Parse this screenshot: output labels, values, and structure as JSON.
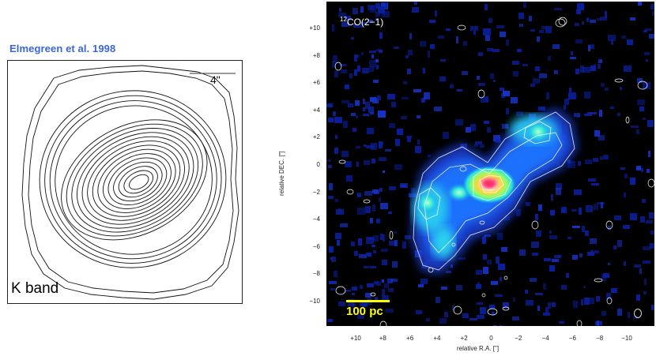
{
  "left": {
    "caption": "Elmegreen et al. 1998",
    "scale_label": "4\"",
    "band_label": "K band"
  },
  "right": {
    "line_label_iso": "12",
    "line_label": "CO(2−1)",
    "scale_label": "100 pc",
    "y_axis_label": "relative DEC. [\"]",
    "x_axis_label": "relative R.A. [\"]",
    "y_ticks": [
      "+10",
      "+8",
      "+6",
      "+4",
      "+2",
      "0",
      "−2",
      "−4",
      "−6",
      "−8",
      "−10"
    ],
    "x_ticks": [
      "+10",
      "+8",
      "+6",
      "+4",
      "+2",
      "0",
      "−2",
      "−4",
      "−6",
      "−8",
      "−10"
    ]
  },
  "colors": {
    "caption": "#3a66d6",
    "map_background": "#000000",
    "scalebar": "#ffff00"
  }
}
